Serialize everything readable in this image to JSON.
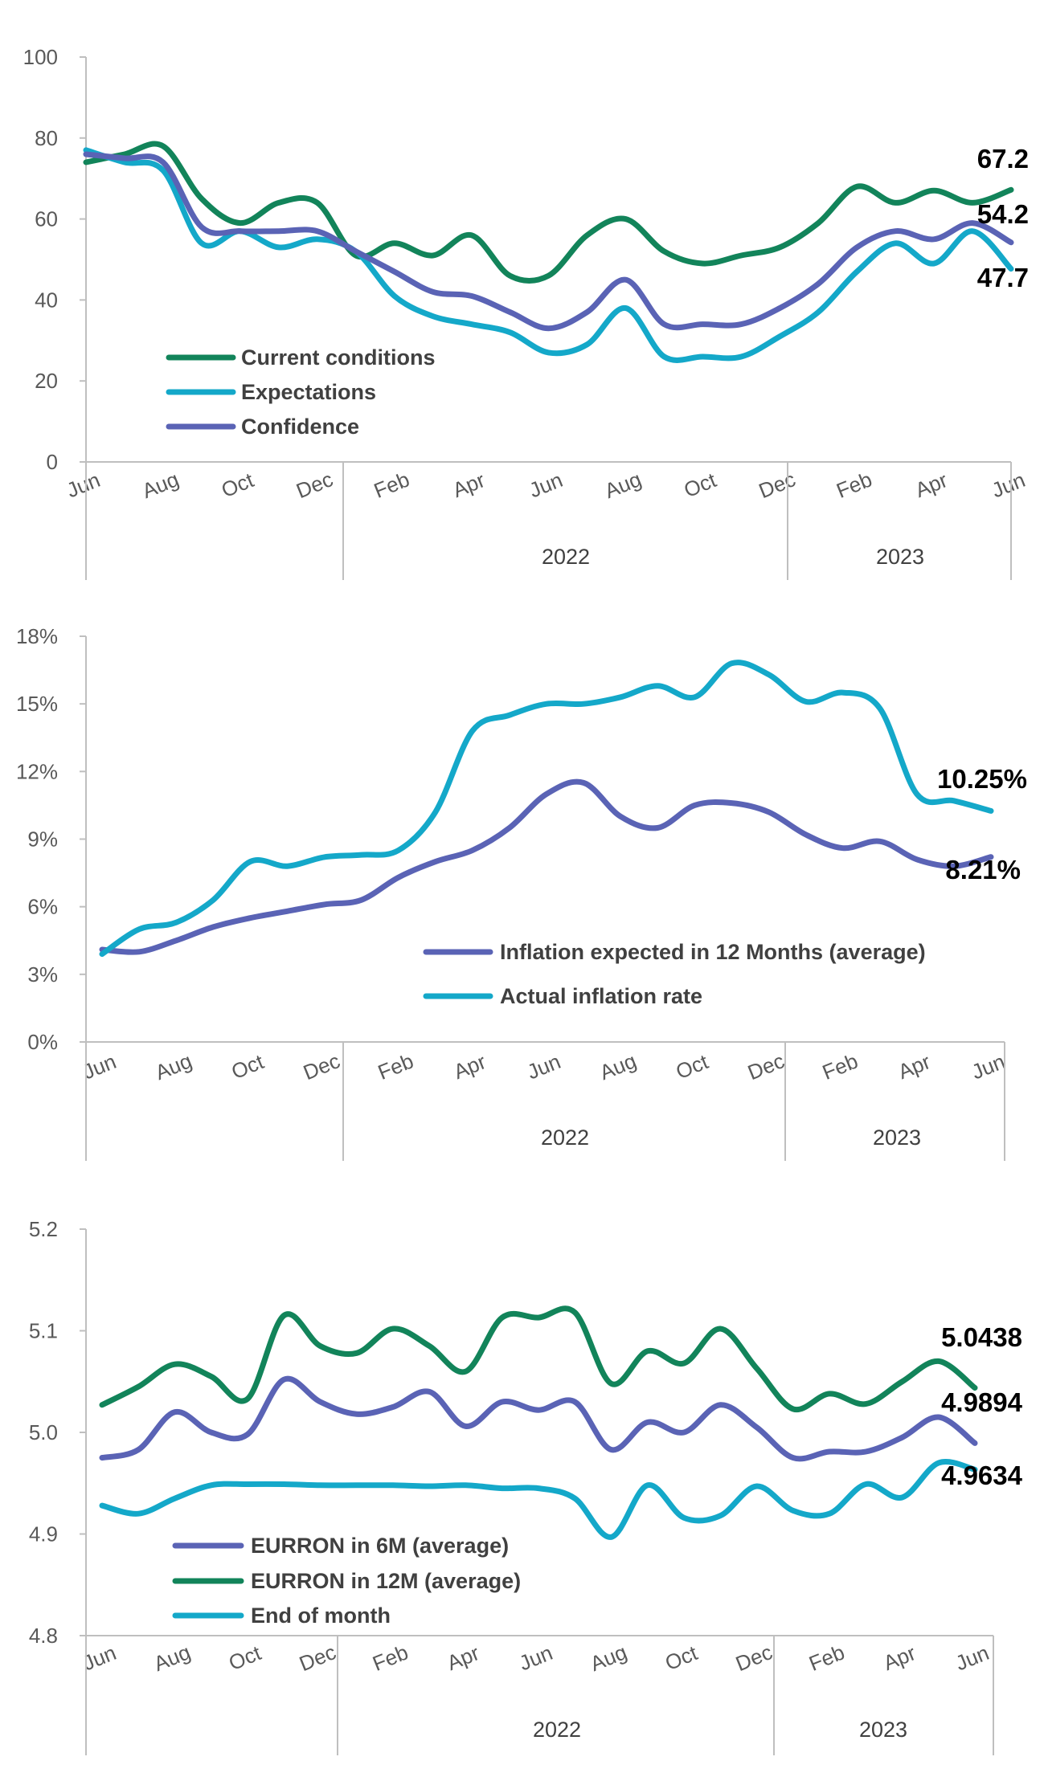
{
  "colors": {
    "green": "#12845a",
    "cyan": "#14a8c9",
    "purple": "#5a63b5",
    "axis": "#bfbfbf",
    "tick_text": "#595959"
  },
  "chart_data": [
    {
      "type": "line",
      "x": [
        "2021-06",
        "2021-07",
        "2021-08",
        "2021-09",
        "2021-10",
        "2021-11",
        "2021-12",
        "2022-01",
        "2022-02",
        "2022-03",
        "2022-04",
        "2022-05",
        "2022-06",
        "2022-07",
        "2022-08",
        "2022-09",
        "2022-10",
        "2022-11",
        "2022-12",
        "2023-01",
        "2023-02",
        "2023-03",
        "2023-04",
        "2023-05",
        "2023-06"
      ],
      "tick_labels": [
        "Jun",
        "Aug",
        "Oct",
        "Dec",
        "Feb",
        "Apr",
        "Jun",
        "Aug",
        "Oct",
        "Dec",
        "Feb",
        "Apr",
        "Jun"
      ],
      "year_labels": [
        "2022",
        "2023"
      ],
      "ylim": [
        0,
        100
      ],
      "y_ticks": [
        "0",
        "20",
        "40",
        "60",
        "80",
        "100"
      ],
      "legend_position": "left",
      "series": [
        {
          "name": "Current conditions",
          "color": "green",
          "values": [
            74,
            76,
            78,
            65,
            59,
            64,
            64,
            51,
            54,
            51,
            56,
            46,
            46,
            56,
            60,
            52,
            49,
            51,
            53,
            59,
            68,
            64,
            67,
            64,
            67.2
          ]
        },
        {
          "name": "Expectations",
          "color": "cyan",
          "values": [
            77,
            74,
            72,
            54,
            57,
            53,
            55,
            52,
            41,
            36,
            34,
            32,
            27,
            29,
            38,
            26,
            26,
            26,
            31,
            37,
            47,
            54,
            49,
            57,
            47.7
          ]
        },
        {
          "name": "Confidence",
          "color": "purple",
          "values": [
            76,
            75,
            74,
            58,
            57,
            57,
            57,
            52,
            47,
            42,
            41,
            37,
            33,
            37,
            45,
            34,
            34,
            34,
            38,
            44,
            53,
            57,
            55,
            59,
            54.2
          ]
        }
      ],
      "end_labels": [
        "67.2",
        "54.2",
        "47.7"
      ]
    },
    {
      "type": "line",
      "x": [
        "2021-06",
        "2021-07",
        "2021-08",
        "2021-09",
        "2021-10",
        "2021-11",
        "2021-12",
        "2022-01",
        "2022-02",
        "2022-03",
        "2022-04",
        "2022-05",
        "2022-06",
        "2022-07",
        "2022-08",
        "2022-09",
        "2022-10",
        "2022-11",
        "2022-12",
        "2023-01",
        "2023-02",
        "2023-03",
        "2023-04",
        "2023-05",
        "2023-06"
      ],
      "tick_labels": [
        "Jun",
        "Aug",
        "Oct",
        "Dec",
        "Feb",
        "Apr",
        "Jun",
        "Aug",
        "Oct",
        "Dec",
        "Feb",
        "Apr",
        "Jun"
      ],
      "year_labels": [
        "2022",
        "2023"
      ],
      "ylim": [
        0,
        18
      ],
      "y_ticks": [
        "0%",
        "3%",
        "6%",
        "9%",
        "12%",
        "15%",
        "18%"
      ],
      "legend_position": "bottom-right",
      "series": [
        {
          "name": "Inflation expected in 12 Months (average)",
          "color": "purple",
          "values": [
            4.1,
            4.0,
            4.5,
            5.1,
            5.5,
            5.8,
            6.1,
            6.3,
            7.3,
            8.0,
            8.5,
            9.5,
            11.0,
            11.5,
            10.0,
            9.5,
            10.5,
            10.6,
            10.2,
            9.2,
            8.6,
            8.9,
            8.1,
            7.8,
            8.21
          ]
        },
        {
          "name": "Actual inflation rate",
          "color": "cyan",
          "values": [
            3.9,
            5.0,
            5.3,
            6.3,
            8.0,
            7.8,
            8.2,
            8.3,
            8.5,
            10.2,
            13.8,
            14.5,
            15.0,
            15.0,
            15.3,
            15.8,
            15.3,
            16.8,
            16.3,
            15.1,
            15.5,
            14.8,
            11.0,
            10.7,
            10.25
          ]
        }
      ],
      "end_labels": [
        "10.25%",
        "8.21%"
      ]
    },
    {
      "type": "line",
      "x": [
        "2021-06",
        "2021-07",
        "2021-08",
        "2021-09",
        "2021-10",
        "2021-11",
        "2021-12",
        "2022-01",
        "2022-02",
        "2022-03",
        "2022-04",
        "2022-05",
        "2022-06",
        "2022-07",
        "2022-08",
        "2022-09",
        "2022-10",
        "2022-11",
        "2022-12",
        "2023-01",
        "2023-02",
        "2023-03",
        "2023-04",
        "2023-05",
        "2023-06"
      ],
      "tick_labels": [
        "Jun",
        "Aug",
        "Oct",
        "Dec",
        "Feb",
        "Apr",
        "Jun",
        "Aug",
        "Oct",
        "Dec",
        "Feb",
        "Apr",
        "Jun"
      ],
      "year_labels": [
        "2022",
        "2023"
      ],
      "ylim": [
        4.8,
        5.2
      ],
      "y_ticks": [
        "4.8",
        "4.9",
        "5.0",
        "5.1",
        "5.2"
      ],
      "legend_position": "bottom-left",
      "series": [
        {
          "name": "EURRON in 6M (average)",
          "color": "purple",
          "values": [
            4.975,
            4.983,
            5.02,
            5.0,
            4.998,
            5.052,
            5.03,
            5.018,
            5.025,
            5.04,
            5.006,
            5.03,
            5.022,
            5.03,
            4.983,
            5.01,
            5.0,
            5.027,
            5.005,
            4.975,
            4.981,
            4.981,
            4.995,
            5.015,
            4.9894
          ]
        },
        {
          "name": "EURRON in 12M (average)",
          "color": "green",
          "values": [
            5.027,
            5.045,
            5.067,
            5.055,
            5.033,
            5.115,
            5.085,
            5.078,
            5.102,
            5.085,
            5.06,
            5.113,
            5.113,
            5.118,
            5.048,
            5.08,
            5.068,
            5.102,
            5.063,
            5.023,
            5.038,
            5.028,
            5.05,
            5.07,
            5.0438
          ]
        },
        {
          "name": "End of month",
          "color": "cyan",
          "values": [
            4.928,
            4.92,
            4.935,
            4.948,
            4.949,
            4.949,
            4.948,
            4.948,
            4.948,
            4.947,
            4.948,
            4.945,
            4.945,
            4.935,
            4.897,
            4.948,
            4.916,
            4.918,
            4.947,
            4.923,
            4.92,
            4.949,
            4.936,
            4.97,
            4.9634
          ]
        }
      ],
      "end_labels": [
        "5.0438",
        "4.9894",
        "4.9634"
      ]
    }
  ]
}
